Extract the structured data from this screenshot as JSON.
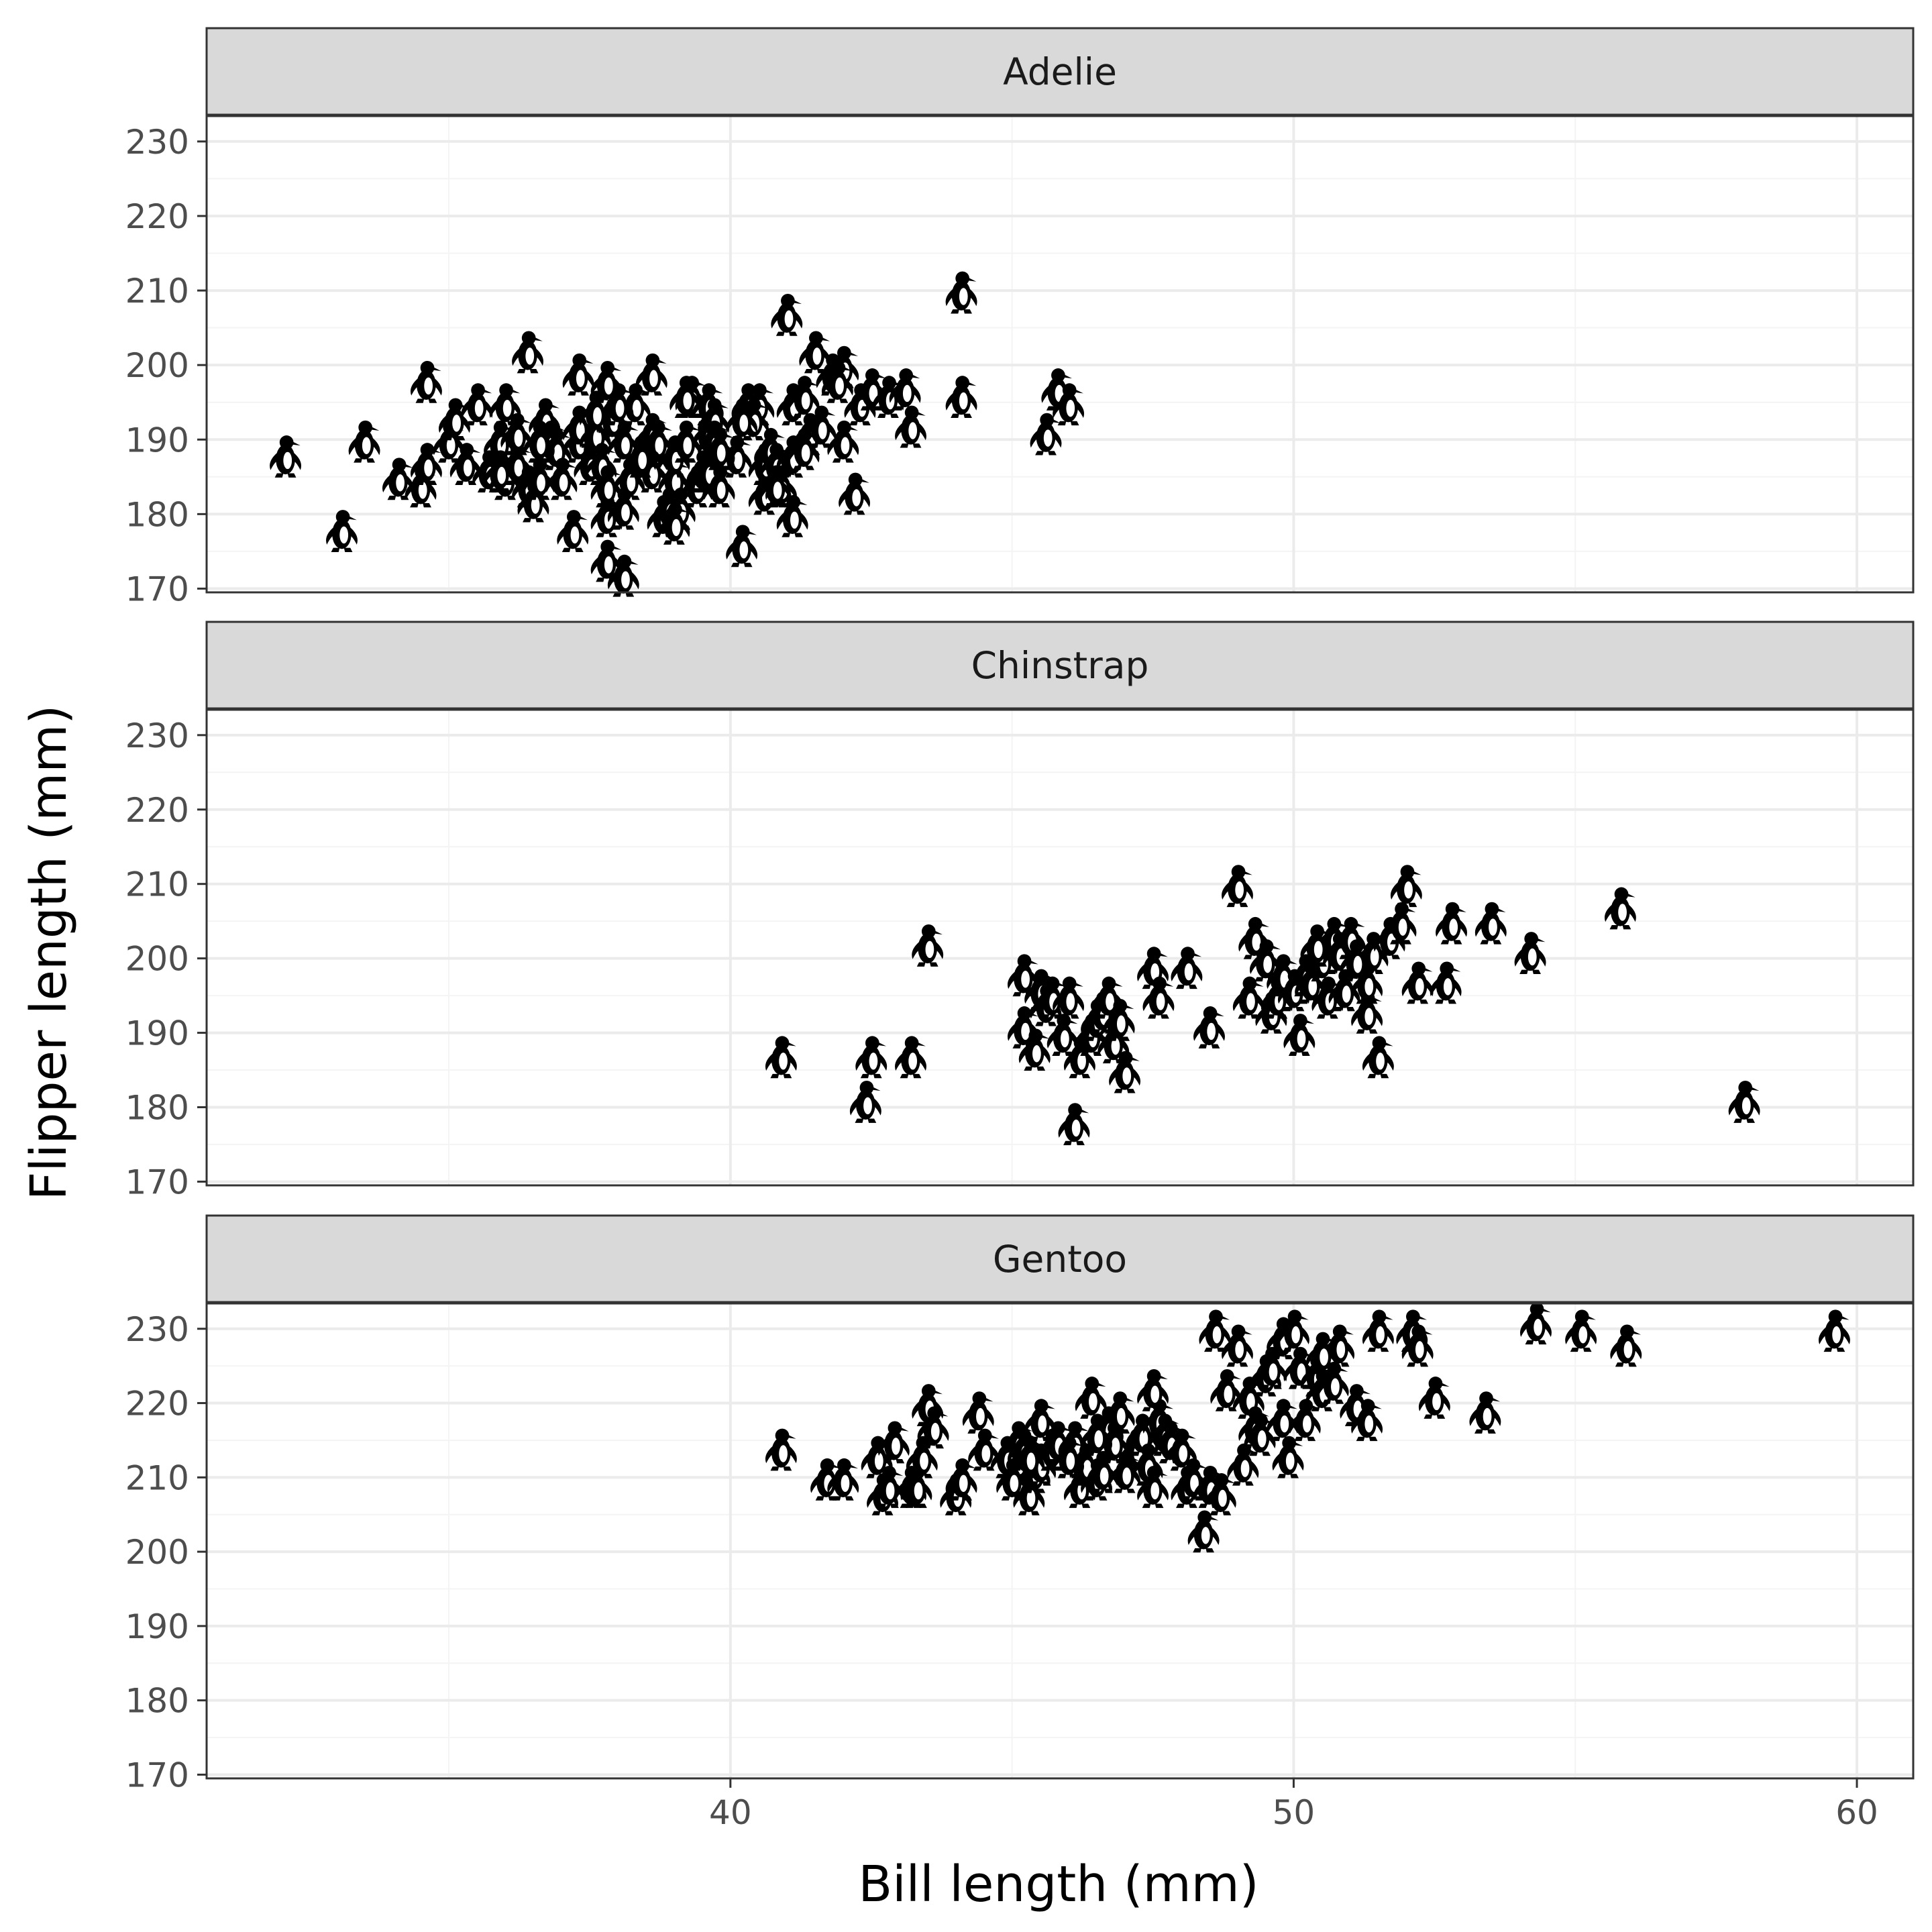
{
  "chart_data": {
    "type": "scatter",
    "marker": "penguin-icon",
    "xlabel": "Bill length (mm)",
    "ylabel": "Flipper length (mm)",
    "xlim": [
      30.7,
      61.0
    ],
    "ylim": [
      169.5,
      233.5
    ],
    "x_ticks": [
      40,
      50,
      60
    ],
    "y_ticks": [
      170,
      180,
      190,
      200,
      210,
      220,
      230
    ],
    "grid": true,
    "colors": {
      "strip_fill": "#d9d9d9",
      "frame": "#333333",
      "grid_major": "#ebebeb",
      "grid_minor": "#f4f4f4",
      "marker": "#000000"
    },
    "panels": [
      {
        "name": "Adelie",
        "points": [
          [
            32.1,
            188
          ],
          [
            33.1,
            178
          ],
          [
            33.5,
            190
          ],
          [
            34.1,
            185
          ],
          [
            34.5,
            184
          ],
          [
            34.6,
            187
          ],
          [
            34.6,
            198
          ],
          [
            35.0,
            190
          ],
          [
            35.1,
            193
          ],
          [
            35.3,
            187
          ],
          [
            35.5,
            195
          ],
          [
            35.7,
            186
          ],
          [
            35.9,
            190
          ],
          [
            36.0,
            185
          ],
          [
            36.0,
            195
          ],
          [
            36.2,
            187
          ],
          [
            36.4,
            184
          ],
          [
            36.4,
            202
          ],
          [
            36.5,
            182
          ],
          [
            36.6,
            185
          ],
          [
            36.7,
            193
          ],
          [
            36.8,
            190
          ],
          [
            36.9,
            189
          ],
          [
            37.0,
            185
          ],
          [
            37.2,
            178
          ],
          [
            37.3,
            190
          ],
          [
            37.3,
            192
          ],
          [
            37.5,
            187
          ],
          [
            37.6,
            191
          ],
          [
            37.7,
            187
          ],
          [
            37.8,
            174
          ],
          [
            37.8,
            180
          ],
          [
            37.8,
            184
          ],
          [
            37.9,
            193
          ],
          [
            38.1,
            181
          ],
          [
            38.1,
            190
          ],
          [
            38.2,
            185
          ],
          [
            38.3,
            195
          ],
          [
            38.6,
            188
          ],
          [
            38.6,
            191
          ],
          [
            38.6,
            199
          ],
          [
            38.7,
            190
          ],
          [
            38.8,
            180
          ],
          [
            38.9,
            181
          ],
          [
            39.0,
            185
          ],
          [
            39.0,
            188
          ],
          [
            39.1,
            181
          ],
          [
            39.2,
            190
          ],
          [
            39.3,
            196
          ],
          [
            39.4,
            184
          ],
          [
            39.5,
            186
          ],
          [
            39.6,
            186
          ],
          [
            39.6,
            191
          ],
          [
            39.6,
            195
          ],
          [
            39.7,
            193
          ],
          [
            39.8,
            184
          ],
          [
            40.1,
            188
          ],
          [
            40.2,
            176
          ],
          [
            40.3,
            195
          ],
          [
            40.5,
            195
          ],
          [
            40.6,
            183
          ],
          [
            40.6,
            187
          ],
          [
            40.7,
            189
          ],
          [
            40.8,
            187
          ],
          [
            40.9,
            184
          ],
          [
            41.0,
            207
          ],
          [
            41.1,
            180
          ],
          [
            41.1,
            188
          ],
          [
            41.1,
            195
          ],
          [
            41.3,
            196
          ],
          [
            41.4,
            191
          ],
          [
            41.5,
            202
          ],
          [
            41.6,
            192
          ],
          [
            41.8,
            199
          ],
          [
            42.0,
            200
          ],
          [
            42.2,
            183
          ],
          [
            42.3,
            195
          ],
          [
            42.5,
            197
          ],
          [
            42.8,
            196
          ],
          [
            43.1,
            197
          ],
          [
            43.2,
            192
          ],
          [
            44.1,
            196
          ],
          [
            44.1,
            210
          ],
          [
            45.6,
            191
          ],
          [
            45.8,
            197
          ],
          [
            46.0,
            195
          ],
          [
            38.0,
            195
          ],
          [
            39.2,
            196
          ],
          [
            40.4,
            193
          ],
          [
            41.9,
            198
          ],
          [
            37.3,
            199
          ],
          [
            36.2,
            191
          ],
          [
            39.0,
            179
          ],
          [
            38.1,
            172
          ],
          [
            41.3,
            189
          ],
          [
            37.8,
            198
          ],
          [
            36.6,
            190
          ],
          [
            39.7,
            190
          ],
          [
            35.9,
            186
          ],
          [
            38.6,
            186
          ],
          [
            40.8,
            184
          ],
          [
            42.0,
            190
          ],
          [
            40.2,
            193
          ],
          [
            39.8,
            189
          ],
          [
            37.6,
            194
          ],
          [
            38.4,
            188
          ]
        ]
      },
      {
        "name": "Chinstrap",
        "points": [
          [
            40.9,
            187
          ],
          [
            42.4,
            181
          ],
          [
            42.5,
            187
          ],
          [
            43.2,
            187
          ],
          [
            43.5,
            202
          ],
          [
            45.2,
            191
          ],
          [
            45.2,
            198
          ],
          [
            45.4,
            188
          ],
          [
            45.5,
            196
          ],
          [
            45.6,
            194
          ],
          [
            45.7,
            195
          ],
          [
            45.9,
            190
          ],
          [
            46.0,
            195
          ],
          [
            46.1,
            178
          ],
          [
            46.2,
            187
          ],
          [
            46.4,
            190
          ],
          [
            46.5,
            192
          ],
          [
            46.6,
            193
          ],
          [
            46.7,
            195
          ],
          [
            46.8,
            189
          ],
          [
            46.9,
            192
          ],
          [
            47.0,
            185
          ],
          [
            47.5,
            199
          ],
          [
            47.6,
            195
          ],
          [
            48.1,
            199
          ],
          [
            48.5,
            191
          ],
          [
            49.0,
            210
          ],
          [
            49.2,
            195
          ],
          [
            49.3,
            203
          ],
          [
            49.5,
            200
          ],
          [
            49.6,
            193
          ],
          [
            49.7,
            195
          ],
          [
            49.8,
            198
          ],
          [
            50.0,
            196
          ],
          [
            50.1,
            190
          ],
          [
            50.2,
            198
          ],
          [
            50.3,
            197
          ],
          [
            50.5,
            200
          ],
          [
            50.6,
            195
          ],
          [
            50.7,
            203
          ],
          [
            50.8,
            201
          ],
          [
            50.9,
            196
          ],
          [
            51.0,
            203
          ],
          [
            51.3,
            193
          ],
          [
            51.3,
            197
          ],
          [
            51.4,
            201
          ],
          [
            51.5,
            187
          ],
          [
            51.7,
            203
          ],
          [
            51.9,
            205
          ],
          [
            52.0,
            210
          ],
          [
            52.2,
            197
          ],
          [
            52.7,
            197
          ],
          [
            52.8,
            205
          ],
          [
            53.5,
            205
          ],
          [
            54.2,
            201
          ],
          [
            55.8,
            207
          ],
          [
            58.0,
            181
          ],
          [
            49.5,
            200
          ],
          [
            50.4,
            202
          ],
          [
            51.1,
            200
          ]
        ]
      },
      {
        "name": "Gentoo",
        "points": [
          [
            40.9,
            214
          ],
          [
            41.7,
            210
          ],
          [
            42.0,
            210
          ],
          [
            42.6,
            213
          ],
          [
            42.7,
            208
          ],
          [
            42.8,
            209
          ],
          [
            42.9,
            215
          ],
          [
            43.2,
            209
          ],
          [
            43.3,
            209
          ],
          [
            43.4,
            213
          ],
          [
            43.5,
            220
          ],
          [
            43.6,
            217
          ],
          [
            44.0,
            208
          ],
          [
            44.4,
            219
          ],
          [
            44.5,
            214
          ],
          [
            44.9,
            213
          ],
          [
            45.0,
            210
          ],
          [
            45.1,
            215
          ],
          [
            45.2,
            214
          ],
          [
            45.3,
            208
          ],
          [
            45.4,
            211
          ],
          [
            45.5,
            212
          ],
          [
            45.7,
            214
          ],
          [
            45.8,
            215
          ],
          [
            46.1,
            215
          ],
          [
            46.2,
            209
          ],
          [
            46.3,
            212
          ],
          [
            46.4,
            221
          ],
          [
            46.5,
            210
          ],
          [
            46.6,
            211
          ],
          [
            46.7,
            217
          ],
          [
            46.8,
            215
          ],
          [
            46.9,
            219
          ],
          [
            47.2,
            214
          ],
          [
            47.3,
            216
          ],
          [
            47.4,
            212
          ],
          [
            47.5,
            209
          ],
          [
            47.6,
            218
          ],
          [
            47.7,
            216
          ],
          [
            47.8,
            215
          ],
          [
            48.1,
            209
          ],
          [
            48.2,
            210
          ],
          [
            48.4,
            203
          ],
          [
            48.5,
            209
          ],
          [
            48.6,
            230
          ],
          [
            48.7,
            208
          ],
          [
            48.8,
            222
          ],
          [
            49.0,
            228
          ],
          [
            49.1,
            212
          ],
          [
            49.2,
            221
          ],
          [
            49.3,
            217
          ],
          [
            49.4,
            216
          ],
          [
            49.5,
            224
          ],
          [
            49.6,
            225
          ],
          [
            49.8,
            229
          ],
          [
            49.9,
            213
          ],
          [
            50.0,
            230
          ],
          [
            50.1,
            225
          ],
          [
            50.2,
            218
          ],
          [
            50.4,
            224
          ],
          [
            50.5,
            222
          ],
          [
            50.7,
            223
          ],
          [
            50.8,
            228
          ],
          [
            51.1,
            220
          ],
          [
            51.3,
            218
          ],
          [
            51.5,
            230
          ],
          [
            52.1,
            230
          ],
          [
            52.2,
            228
          ],
          [
            52.5,
            221
          ],
          [
            53.4,
            219
          ],
          [
            54.3,
            231
          ],
          [
            55.1,
            230
          ],
          [
            55.9,
            228
          ],
          [
            59.6,
            230
          ],
          [
            45.5,
            218
          ],
          [
            46.0,
            213
          ],
          [
            47.0,
            211
          ],
          [
            48.0,
            214
          ],
          [
            49.8,
            218
          ],
          [
            50.5,
            227
          ],
          [
            45.3,
            213
          ],
          [
            46.5,
            216
          ],
          [
            44.1,
            210
          ],
          [
            47.5,
            222
          ]
        ]
      }
    ]
  }
}
